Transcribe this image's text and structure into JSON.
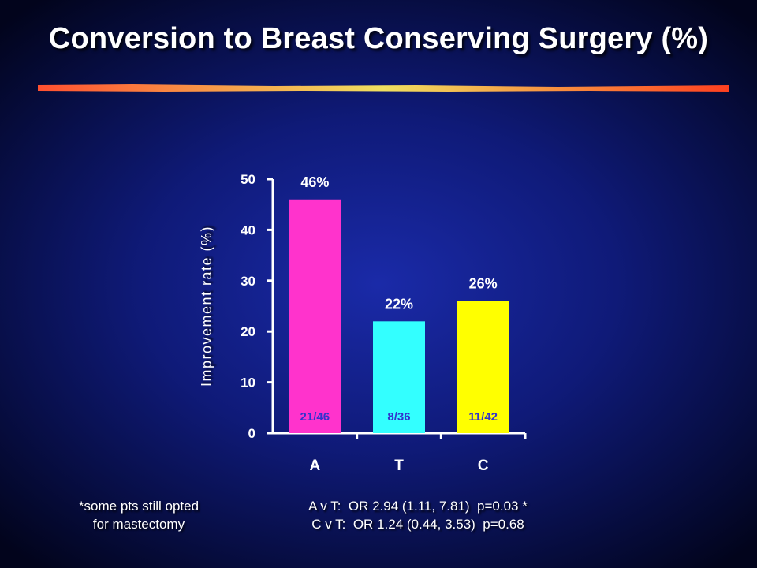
{
  "title": "Conversion to Breast Conserving Surgery (%)",
  "footnote": {
    "line1": "*some pts still opted",
    "line2": "for mastectomy"
  },
  "stats": {
    "line1": "A v T:  OR 2.94 (1.11, 7.81)  p=0.03 *",
    "line2": "C v T:  OR 1.24 (0.44, 3.53)  p=0.68"
  },
  "colors": {
    "bar_A": "#ff33cc",
    "bar_T": "#33ffff",
    "bar_C": "#ffff00",
    "inner_label": "#3333cc",
    "axis": "#ffffff",
    "rule_start": "#ff5030",
    "rule_mid": "#f0e060",
    "rule_end": "#ff4020"
  },
  "chart_data": {
    "type": "bar",
    "title": "",
    "xlabel": "",
    "ylabel": "Improvement rate (%)",
    "ylim": [
      0,
      50
    ],
    "yticks": [
      "0",
      "10",
      "20",
      "30",
      "40",
      "50"
    ],
    "grid": false,
    "categories": [
      "A",
      "T",
      "C"
    ],
    "values": [
      46,
      22,
      26
    ],
    "value_labels": [
      "46%",
      "22%",
      "26%"
    ],
    "inner_labels": [
      "21/46",
      "8/36",
      "11/42"
    ]
  }
}
